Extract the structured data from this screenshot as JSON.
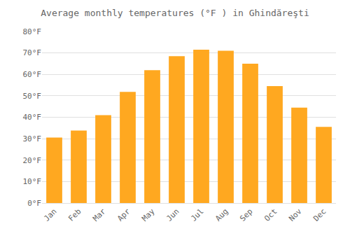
{
  "chart_data": {
    "type": "bar",
    "title": "Average monthly temperatures (°F ) in Ghindăreşti",
    "categories": [
      "Jan",
      "Feb",
      "Mar",
      "Apr",
      "May",
      "Jun",
      "Jul",
      "Aug",
      "Sep",
      "Oct",
      "Nov",
      "Dec"
    ],
    "values": [
      30.5,
      33.8,
      41.0,
      51.8,
      62.0,
      68.5,
      71.5,
      71.0,
      65.0,
      54.5,
      44.5,
      35.5
    ],
    "color": "#FFA820",
    "ylim": [
      0,
      80
    ],
    "yticks": [
      {
        "value": 0,
        "label": "0°F"
      },
      {
        "value": 10,
        "label": "10°F"
      },
      {
        "value": 20,
        "label": "20°F"
      },
      {
        "value": 30,
        "label": "30°F"
      },
      {
        "value": 40,
        "label": "40°F"
      },
      {
        "value": 50,
        "label": "50°F"
      },
      {
        "value": 60,
        "label": "60°F"
      },
      {
        "value": 70,
        "label": "70°F"
      },
      {
        "value": 80,
        "label": "80°F"
      }
    ],
    "grid": true
  }
}
